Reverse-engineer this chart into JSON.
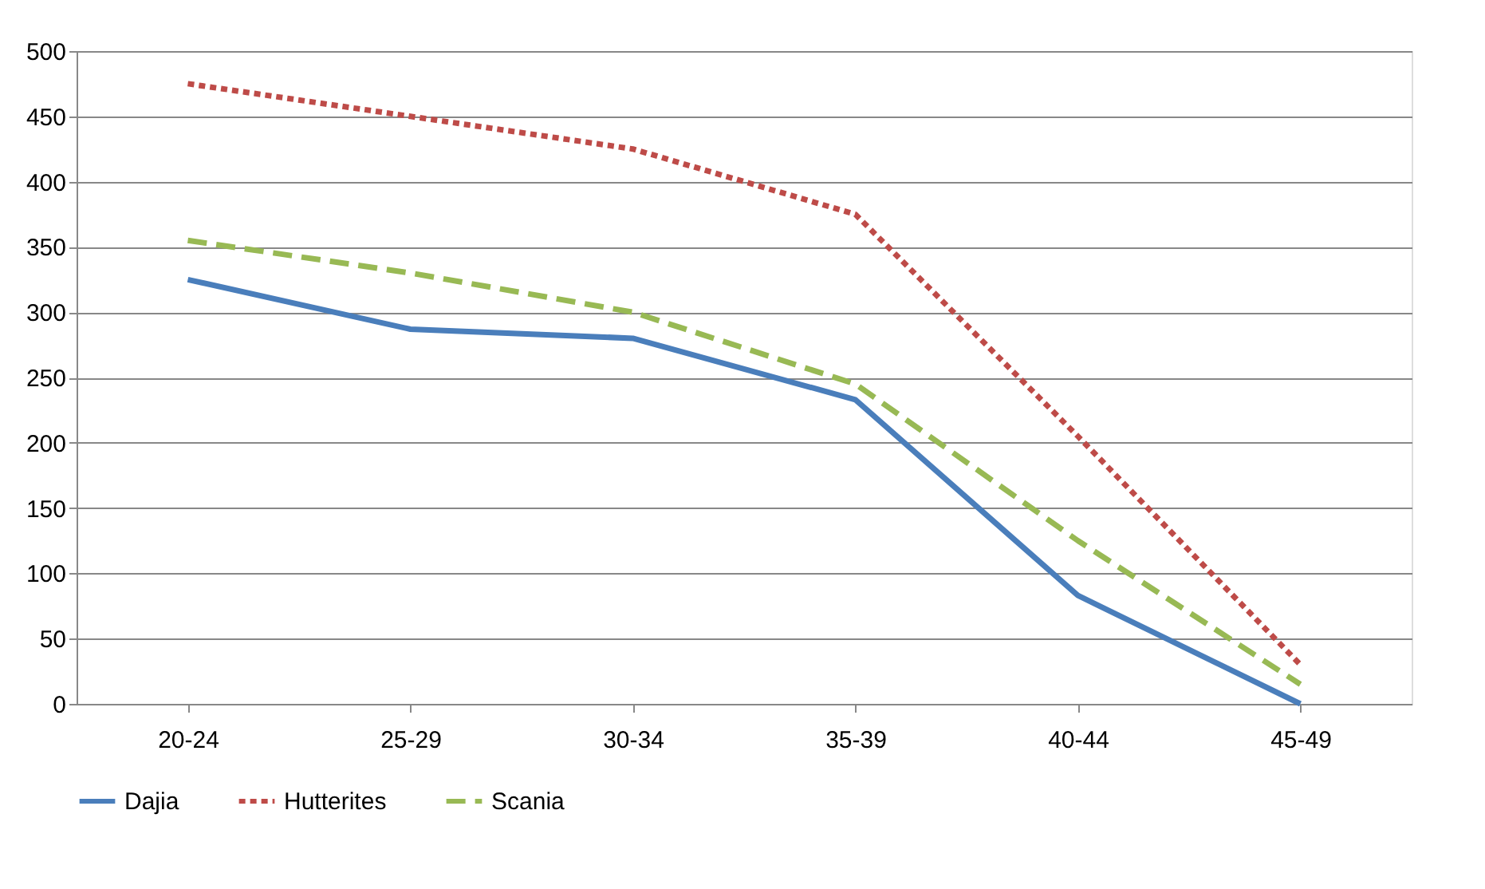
{
  "chart_data": {
    "type": "line",
    "categories": [
      "20-24",
      "25-29",
      "30-34",
      "35-39",
      "40-44",
      "45-49"
    ],
    "ylim": [
      0,
      500
    ],
    "yticks": [
      0,
      50,
      100,
      150,
      200,
      250,
      300,
      350,
      400,
      450,
      500
    ],
    "grid": "y",
    "legend": "bottom",
    "marker": "none",
    "series": [
      {
        "name": "Dajia",
        "color": "#4a7ebb",
        "line_style": "solid",
        "values": [
          325,
          287,
          280,
          233,
          83,
          0
        ]
      },
      {
        "name": "Hutterites",
        "color": "#be4b48",
        "line_style": "dotted",
        "values": [
          475,
          450,
          425,
          375,
          205,
          30
        ]
      },
      {
        "name": "Scania",
        "color": "#98b954",
        "line_style": "dashed",
        "values": [
          355,
          330,
          300,
          245,
          125,
          15
        ]
      }
    ]
  }
}
